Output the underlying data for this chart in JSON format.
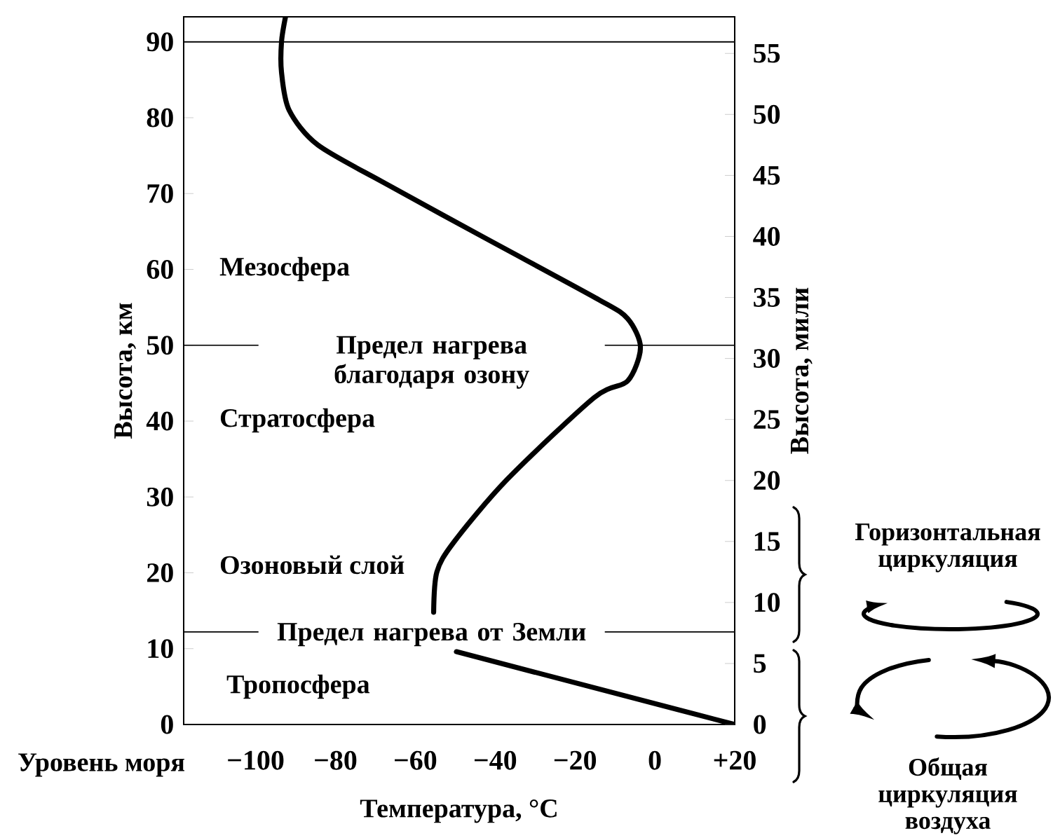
{
  "chart_data": {
    "type": "line",
    "xlabel": "Температура, °C",
    "ylabel": "Высота, км",
    "y2label": "Высота, мили",
    "x": [
      20,
      -49.7,
      -52,
      -55.4,
      -54.6,
      -50.4,
      -37,
      -15.2,
      -6.8,
      -3.6,
      -6.8,
      -14,
      -43.1,
      -67.4,
      -84.4,
      -91.6,
      -93.5,
      -93.5,
      -92.5
    ],
    "series": [
      {
        "color": "#000000",
        "values": [
          0,
          9.6,
          null,
          14.8,
          20.1,
          24,
          32.3,
          43.1,
          45.3,
          49.7,
          53.5,
          56,
          64.3,
          71.3,
          76.4,
          81,
          86,
          90,
          93.3
        ]
      }
    ],
    "xlim": [
      -118,
      20
    ],
    "ylim": [
      0,
      93.3
    ],
    "y2lim": [
      0,
      58
    ],
    "xticks": [
      {
        "value": -100,
        "label": "−100"
      },
      {
        "value": -80,
        "label": "−80"
      },
      {
        "value": -60,
        "label": "−60"
      },
      {
        "value": -40,
        "label": "−40"
      },
      {
        "value": -20,
        "label": "−20"
      },
      0,
      {
        "value": 20,
        "label": "+20"
      }
    ],
    "yticks": [
      0,
      10,
      20,
      30,
      40,
      50,
      60,
      70,
      80,
      90
    ],
    "y2ticks": [
      0,
      5,
      10,
      15,
      20,
      25,
      30,
      35,
      40,
      45,
      50,
      55
    ],
    "ref_lines": [
      {
        "axis": "y",
        "value": 90
      },
      {
        "axis": "y",
        "value": 50,
        "label": "Предел нагрева благодаря озону"
      },
      {
        "axis": "y",
        "value": 12.2,
        "label": "Предел нагрева от Земли"
      }
    ],
    "annotations": [
      "Мезосфера",
      "Стратосфера",
      "Озоновый слой",
      "Тропосфера",
      "Уровень моря",
      "Горизонтальная циркуляция",
      "Общая циркуляция воздуха"
    ]
  }
}
